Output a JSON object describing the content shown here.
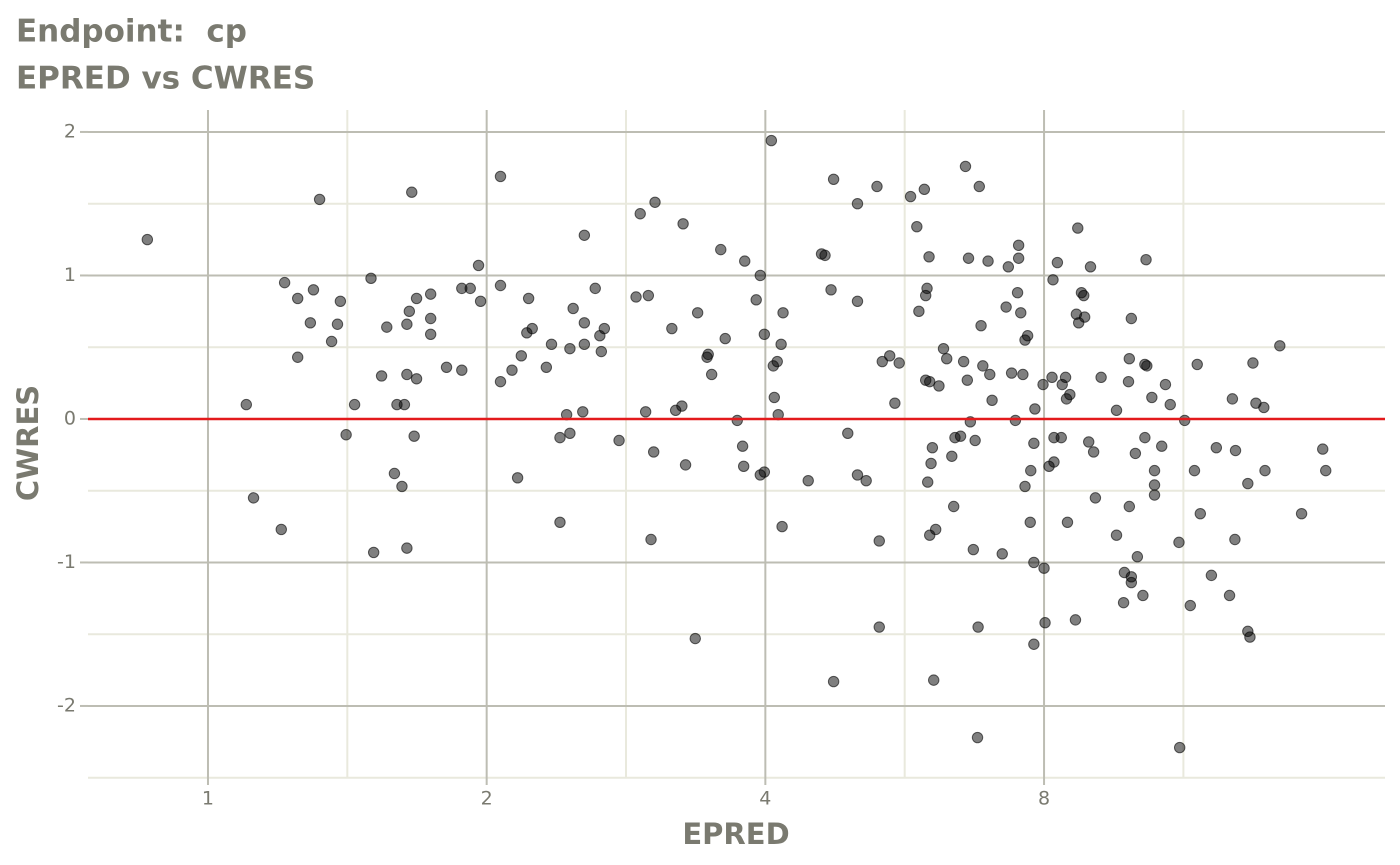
{
  "chart_data": {
    "type": "scatter",
    "title": "Endpoint:  cp",
    "subtitle": "EPRED vs CWRES",
    "x_label": "EPRED",
    "y_label": "CWRES",
    "x_log_base": 2,
    "xlim": [
      0.742,
      18.68
    ],
    "xticks": [
      1,
      2,
      4,
      8
    ],
    "ylim": [
      -2.495,
      2.153
    ],
    "yticks": [
      -2,
      -1,
      0,
      1,
      2
    ],
    "grid": true,
    "color": "#000000",
    "hline": {
      "value": 0,
      "color": "#e31a1c"
    },
    "x": [
      0.86,
      1.1,
      1.12,
      1.2,
      1.21,
      1.25,
      1.25,
      1.29,
      1.3,
      1.32,
      1.36,
      1.38,
      1.39,
      1.41,
      1.44,
      1.5,
      1.51,
      1.54,
      1.56,
      1.59,
      1.6,
      1.62,
      1.63,
      1.64,
      1.64,
      1.64,
      1.65,
      1.66,
      1.67,
      1.68,
      1.68,
      1.74,
      1.74,
      1.74,
      1.81,
      1.88,
      1.88,
      1.92,
      1.96,
      1.97,
      2.07,
      2.07,
      2.07,
      2.13,
      2.16,
      2.18,
      2.21,
      2.22,
      2.24,
      2.32,
      2.35,
      2.4,
      2.4,
      2.44,
      2.46,
      2.46,
      2.48,
      2.54,
      2.55,
      2.55,
      2.55,
      2.62,
      2.65,
      2.66,
      2.68,
      2.78,
      2.9,
      2.93,
      2.97,
      2.99,
      3.01,
      3.03,
      3.04,
      3.17,
      3.2,
      3.25,
      3.26,
      3.28,
      3.36,
      3.38,
      3.46,
      3.47,
      3.5,
      3.58,
      3.62,
      3.73,
      3.78,
      3.79,
      3.8,
      3.91,
      3.95,
      3.95,
      3.99,
      3.99,
      4.06,
      4.08,
      4.09,
      4.12,
      4.13,
      4.16,
      4.17,
      4.18,
      4.45,
      4.6,
      4.64,
      4.71,
      4.74,
      4.74,
      4.91,
      5.03,
      5.03,
      5.03,
      5.14,
      5.28,
      5.31,
      5.31,
      5.35,
      5.45,
      5.52,
      5.58,
      5.74,
      5.83,
      5.86,
      5.94,
      5.96,
      5.96,
      5.98,
      5.99,
      6.01,
      6.02,
      6.02,
      6.04,
      6.06,
      6.08,
      6.11,
      6.16,
      6.23,
      6.28,
      6.36,
      6.39,
      6.41,
      6.5,
      6.55,
      6.58,
      6.61,
      6.63,
      6.66,
      6.71,
      6.74,
      6.78,
      6.79,
      6.81,
      6.84,
      6.87,
      6.96,
      6.99,
      7.03,
      7.21,
      7.28,
      7.32,
      7.38,
      7.45,
      7.49,
      7.51,
      7.51,
      7.55,
      7.59,
      7.63,
      7.63,
      7.68,
      7.73,
      7.74,
      7.8,
      7.82,
      7.8,
      7.8,
      7.98,
      8.0,
      8.02,
      8.1,
      8.16,
      8.18,
      8.2,
      8.2,
      8.27,
      8.35,
      8.37,
      8.44,
      8.46,
      8.48,
      8.53,
      8.65,
      8.67,
      8.7,
      8.72,
      8.78,
      8.83,
      8.85,
      8.94,
      8.98,
      9.05,
      9.09,
      9.22,
      9.58,
      9.58,
      9.75,
      9.77,
      9.87,
      9.89,
      9.89,
      9.94,
      9.94,
      9.94,
      10.04,
      10.09,
      10.23,
      10.28,
      10.28,
      10.33,
      10.31,
      10.46,
      10.53,
      10.53,
      10.53,
      10.72,
      10.82,
      10.95,
      11.19,
      11.21,
      11.35,
      11.51,
      11.63,
      11.71,
      11.8,
      12.13,
      12.28,
      12.69,
      12.78,
      12.86,
      12.88,
      13.28,
      13.28,
      13.35,
      13.45,
      13.55,
      13.82,
      13.86,
      14.38,
      15.18,
      16.0,
      16.12
    ],
    "values": [
      1.25,
      0.1,
      -0.55,
      -0.77,
      0.95,
      0.84,
      0.43,
      0.67,
      0.9,
      1.53,
      0.54,
      0.66,
      0.82,
      -0.11,
      0.1,
      0.98,
      -0.93,
      0.3,
      0.64,
      -0.38,
      0.1,
      -0.47,
      0.1,
      -0.9,
      0.66,
      0.31,
      0.75,
      1.58,
      -0.12,
      0.28,
      0.84,
      0.7,
      0.59,
      0.87,
      0.36,
      0.34,
      0.91,
      0.91,
      1.07,
      0.82,
      0.26,
      0.93,
      1.69,
      0.34,
      -0.41,
      0.44,
      0.6,
      0.84,
      0.63,
      0.36,
      0.52,
      -0.13,
      -0.72,
      0.03,
      -0.1,
      0.49,
      0.77,
      0.05,
      0.52,
      0.67,
      1.28,
      0.91,
      0.58,
      0.47,
      0.63,
      -0.15,
      0.85,
      1.43,
      0.05,
      0.86,
      -0.84,
      -0.23,
      1.51,
      0.63,
      0.06,
      0.09,
      1.36,
      -0.32,
      -1.53,
      0.74,
      0.43,
      0.45,
      0.31,
      1.18,
      0.56,
      -0.01,
      -0.19,
      -0.33,
      1.1,
      0.83,
      1.0,
      -0.39,
      -0.37,
      0.59,
      1.94,
      0.37,
      0.15,
      0.4,
      0.03,
      0.52,
      -0.75,
      0.74,
      -0.43,
      1.15,
      1.14,
      0.9,
      1.67,
      -1.83,
      -0.1,
      0.82,
      1.5,
      -0.39,
      -0.43,
      1.62,
      -0.85,
      -1.45,
      0.4,
      0.44,
      0.11,
      0.39,
      1.55,
      1.34,
      0.75,
      1.6,
      0.27,
      0.86,
      0.91,
      -0.44,
      1.13,
      0.26,
      -0.81,
      -0.31,
      -0.2,
      -1.82,
      -0.77,
      0.23,
      0.49,
      0.42,
      -0.26,
      -0.61,
      -0.13,
      -0.12,
      0.4,
      1.76,
      0.27,
      1.12,
      -0.02,
      -0.91,
      -0.15,
      -2.22,
      -1.45,
      1.62,
      0.65,
      0.37,
      1.1,
      0.31,
      0.13,
      -0.94,
      0.78,
      1.06,
      0.32,
      -0.01,
      0.88,
      1.12,
      1.21,
      0.74,
      0.31,
      -0.47,
      0.55,
      0.58,
      -0.72,
      -0.36,
      -1.0,
      0.07,
      -0.17,
      -1.57,
      0.24,
      -1.04,
      -1.42,
      -0.33,
      0.29,
      0.97,
      -0.3,
      -0.13,
      1.09,
      -0.13,
      0.24,
      0.29,
      0.14,
      -0.72,
      0.17,
      -1.4,
      0.73,
      1.33,
      0.67,
      0.88,
      0.86,
      0.71,
      -0.16,
      1.06,
      -0.23,
      -0.55,
      0.29,
      0.06,
      -0.81,
      -1.28,
      -1.07,
      0.26,
      -0.61,
      0.42,
      0.7,
      -1.1,
      -1.14,
      -0.24,
      -0.96,
      -1.23,
      -0.13,
      0.38,
      0.37,
      1.11,
      0.15,
      -0.36,
      -0.46,
      -0.53,
      -0.19,
      0.24,
      0.1,
      -0.86,
      -2.29,
      -0.01,
      -1.3,
      -0.36,
      0.38,
      -0.66,
      -1.09,
      -0.2,
      -1.23,
      0.14,
      -0.84,
      -0.22,
      -0.45,
      -1.48,
      -1.52,
      0.39,
      0.11,
      0.08,
      -0.36,
      0.51,
      -0.66,
      -0.21,
      -0.36
    ]
  }
}
